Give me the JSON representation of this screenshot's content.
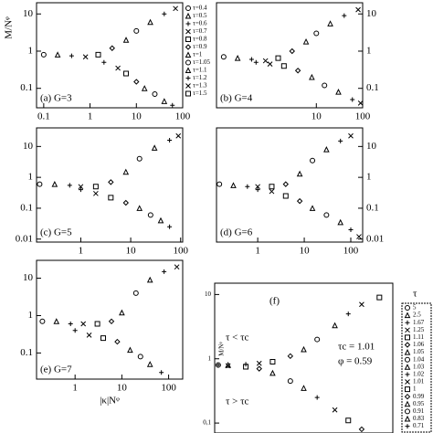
{
  "chart_data": [
    {
      "type": "scatter",
      "label": "(a) G=3",
      "ylabel": "M/Nᵠ",
      "xlim": [
        0.07,
        100
      ],
      "ylim": [
        0.03,
        20
      ],
      "xticks": [
        0.1,
        1,
        10,
        100
      ],
      "yticks": [
        0.1,
        1,
        10
      ],
      "yaxis_side": "left",
      "color": "#000000",
      "legend": [
        "τ=0.4",
        "τ=0.5",
        "τ=0.6",
        "τ=0.7",
        "τ=0.8",
        "τ=0.9",
        "τ=1",
        "τ=1.05",
        "τ=1.1",
        "τ=1.2",
        "τ=1.3",
        "τ=1.5"
      ],
      "series": [
        {
          "x": [
            0.1,
            0.2,
            0.4,
            0.8,
            1.5,
            3,
            6,
            10,
            20,
            40,
            70
          ],
          "values": [
            0.8,
            0.8,
            0.75,
            0.7,
            0.8,
            1.2,
            2,
            3.5,
            6,
            10,
            14
          ]
        },
        {
          "x": [
            2,
            4,
            6,
            10,
            15,
            25,
            40,
            60
          ],
          "values": [
            0.5,
            0.35,
            0.25,
            0.15,
            0.1,
            0.07,
            0.045,
            0.035
          ]
        }
      ]
    },
    {
      "type": "scatter",
      "label": "(b) G=4",
      "xlim": [
        0.07,
        100
      ],
      "ylim": [
        0.03,
        20
      ],
      "xticks": [
        10,
        100
      ],
      "yticks": [
        0.1,
        1,
        10
      ],
      "yaxis_side": "right",
      "color": "#000000",
      "series": [
        {
          "x": [
            0.1,
            0.2,
            0.4,
            0.8,
            1.5,
            3,
            6,
            10,
            20,
            40,
            80
          ],
          "values": [
            0.7,
            0.65,
            0.6,
            0.55,
            0.65,
            1,
            1.8,
            3,
            5.5,
            9,
            13
          ]
        },
        {
          "x": [
            0.5,
            1,
            2,
            4,
            8,
            15,
            30,
            60,
            90
          ],
          "values": [
            0.5,
            0.45,
            0.4,
            0.3,
            0.2,
            0.12,
            0.08,
            0.05,
            0.04
          ]
        }
      ]
    },
    {
      "type": "scatter",
      "label": "(c) G=5",
      "xlim": [
        0.13,
        110
      ],
      "ylim": [
        0.008,
        40
      ],
      "xticks": [
        1,
        10,
        100
      ],
      "yticks": [
        0.01,
        0.1,
        1,
        10
      ],
      "yaxis_side": "left",
      "color": "#000000",
      "series": [
        {
          "x": [
            0.15,
            0.3,
            0.6,
            1,
            2,
            4,
            8,
            15,
            30,
            60,
            90
          ],
          "values": [
            0.6,
            0.6,
            0.55,
            0.5,
            0.5,
            0.7,
            1.5,
            4,
            9,
            16,
            22
          ]
        },
        {
          "x": [
            1,
            2,
            4,
            8,
            15,
            25,
            40,
            60
          ],
          "values": [
            0.4,
            0.3,
            0.22,
            0.15,
            0.1,
            0.06,
            0.04,
            0.025
          ]
        }
      ]
    },
    {
      "type": "scatter",
      "label": "(d) G=6",
      "xlim": [
        0.13,
        180
      ],
      "ylim": [
        0.008,
        40
      ],
      "xticks": [
        1,
        10,
        100
      ],
      "yticks": [
        0.01,
        0.1,
        1,
        10
      ],
      "yaxis_side": "right",
      "color": "#000000",
      "series": [
        {
          "x": [
            0.15,
            0.3,
            0.6,
            1,
            2,
            4,
            8,
            15,
            30,
            60,
            100
          ],
          "values": [
            0.6,
            0.55,
            0.5,
            0.5,
            0.5,
            0.6,
            1.3,
            3.5,
            8,
            15,
            22
          ]
        },
        {
          "x": [
            1,
            2,
            4,
            8,
            15,
            30,
            60,
            100,
            150
          ],
          "values": [
            0.4,
            0.35,
            0.25,
            0.17,
            0.1,
            0.06,
            0.035,
            0.02,
            0.012
          ]
        }
      ]
    },
    {
      "type": "scatter",
      "label": "(e) G=7",
      "xlabel": "|κ|Nᵠ",
      "xlim": [
        0.15,
        200
      ],
      "ylim": [
        0.02,
        30
      ],
      "xticks": [
        1,
        10,
        100
      ],
      "yticks": [
        0.1,
        1,
        10
      ],
      "yaxis_side": "left",
      "color": "#000000",
      "series": [
        {
          "x": [
            0.2,
            0.4,
            0.8,
            1.5,
            3,
            6,
            10,
            20,
            40,
            80,
            150
          ],
          "values": [
            0.7,
            0.7,
            0.6,
            0.6,
            0.6,
            0.7,
            1.2,
            4,
            9,
            15,
            20
          ]
        },
        {
          "x": [
            1,
            2,
            4,
            8,
            15,
            25,
            40,
            70
          ],
          "values": [
            0.4,
            0.3,
            0.25,
            0.2,
            0.12,
            0.08,
            0.05,
            0.03
          ]
        }
      ]
    },
    {
      "type": "scatter",
      "label": "(f)",
      "ylabel": "M/Nᵠ",
      "xlim": [
        0.01,
        100
      ],
      "ylim": [
        0.07,
        15
      ],
      "yticks": [
        {
          "value": 0.1,
          "label": "0,1"
        },
        1,
        10
      ],
      "yaxis_side": "left",
      "color": "#000000",
      "legend_title": "τ",
      "legend": [
        "5",
        "2.5",
        "1.67",
        "1.25",
        "1.11",
        "1.06",
        "1.05",
        "1.04",
        "1.03",
        "1.02",
        "1.01",
        "1",
        "0.99",
        "0.95",
        "0.91",
        "0.83",
        "0.71"
      ],
      "annotations": [
        "τ < τc",
        "τ > τc",
        "τc = 1.01",
        "φ = 0.59"
      ],
      "series": [
        {
          "x": [
            0.012,
            0.02,
            0.05,
            0.1,
            0.2,
            0.5,
            1,
            2,
            5,
            10,
            20,
            50
          ],
          "values": [
            0.8,
            0.8,
            0.82,
            0.85,
            0.9,
            1.1,
            1.4,
            2,
            3.3,
            5,
            7,
            9
          ]
        },
        {
          "x": [
            0.012,
            0.02,
            0.05,
            0.1,
            0.2,
            0.5,
            1,
            2,
            5,
            10,
            20
          ],
          "values": [
            0.8,
            0.78,
            0.75,
            0.7,
            0.6,
            0.45,
            0.35,
            0.25,
            0.16,
            0.11,
            0.08
          ]
        }
      ]
    }
  ]
}
